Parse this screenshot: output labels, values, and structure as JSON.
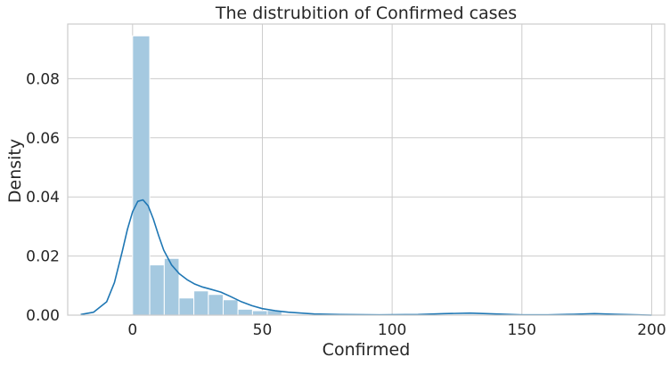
{
  "chart_data": {
    "type": "bar",
    "title": "The distrubition of Confirmed cases",
    "xlabel": "Confirmed",
    "ylabel": "Density",
    "xlim": [
      -25,
      205
    ],
    "ylim": [
      0,
      0.0985
    ],
    "x_ticks": [
      {
        "value": 0,
        "label": "0"
      },
      {
        "value": 50,
        "label": "50"
      },
      {
        "value": 100,
        "label": "100"
      },
      {
        "value": 150,
        "label": "150"
      },
      {
        "value": 200,
        "label": "200"
      }
    ],
    "y_ticks": [
      {
        "value": 0,
        "label": "0.00"
      },
      {
        "value": 0.02,
        "label": "0.02"
      },
      {
        "value": 0.04,
        "label": "0.04"
      },
      {
        "value": 0.06,
        "label": "0.06"
      },
      {
        "value": 0.08,
        "label": "0.08"
      }
    ],
    "grid": true,
    "histogram": {
      "bin_edges": [
        0,
        6.6,
        12.2,
        17.9,
        23.6,
        29.2,
        34.9,
        40.6,
        46.2,
        51.9,
        57.5
      ],
      "values": [
        0.0945,
        0.017,
        0.0192,
        0.0058,
        0.0082,
        0.007,
        0.0052,
        0.002,
        0.0015,
        0.0016
      ],
      "color": "#a5c9e0",
      "edge_color": "#ffffff"
    },
    "kde": {
      "color": "#1f77b4",
      "points": [
        [
          -20,
          0.0002
        ],
        [
          -15,
          0.001
        ],
        [
          -10,
          0.0045
        ],
        [
          -7,
          0.011
        ],
        [
          -4,
          0.0215
        ],
        [
          -2,
          0.029
        ],
        [
          0,
          0.035
        ],
        [
          2,
          0.0385
        ],
        [
          4,
          0.039
        ],
        [
          6,
          0.037
        ],
        [
          8,
          0.0325
        ],
        [
          10,
          0.027
        ],
        [
          12,
          0.022
        ],
        [
          15,
          0.017
        ],
        [
          18,
          0.014
        ],
        [
          21,
          0.012
        ],
        [
          24,
          0.0105
        ],
        [
          27,
          0.0095
        ],
        [
          30,
          0.0088
        ],
        [
          34,
          0.0078
        ],
        [
          38,
          0.0062
        ],
        [
          42,
          0.0045
        ],
        [
          46,
          0.0032
        ],
        [
          50,
          0.0022
        ],
        [
          55,
          0.0015
        ],
        [
          60,
          0.001
        ],
        [
          70,
          0.0004
        ],
        [
          80,
          0.0002
        ],
        [
          95,
          0.0001
        ],
        [
          110,
          0.0002
        ],
        [
          120,
          0.0005
        ],
        [
          130,
          0.0007
        ],
        [
          140,
          0.0004
        ],
        [
          150,
          0.0001
        ],
        [
          160,
          0.0001
        ],
        [
          170,
          0.0003
        ],
        [
          178,
          0.0005
        ],
        [
          186,
          0.0003
        ],
        [
          195,
          0.0001
        ],
        [
          200,
          0.0
        ]
      ]
    }
  }
}
